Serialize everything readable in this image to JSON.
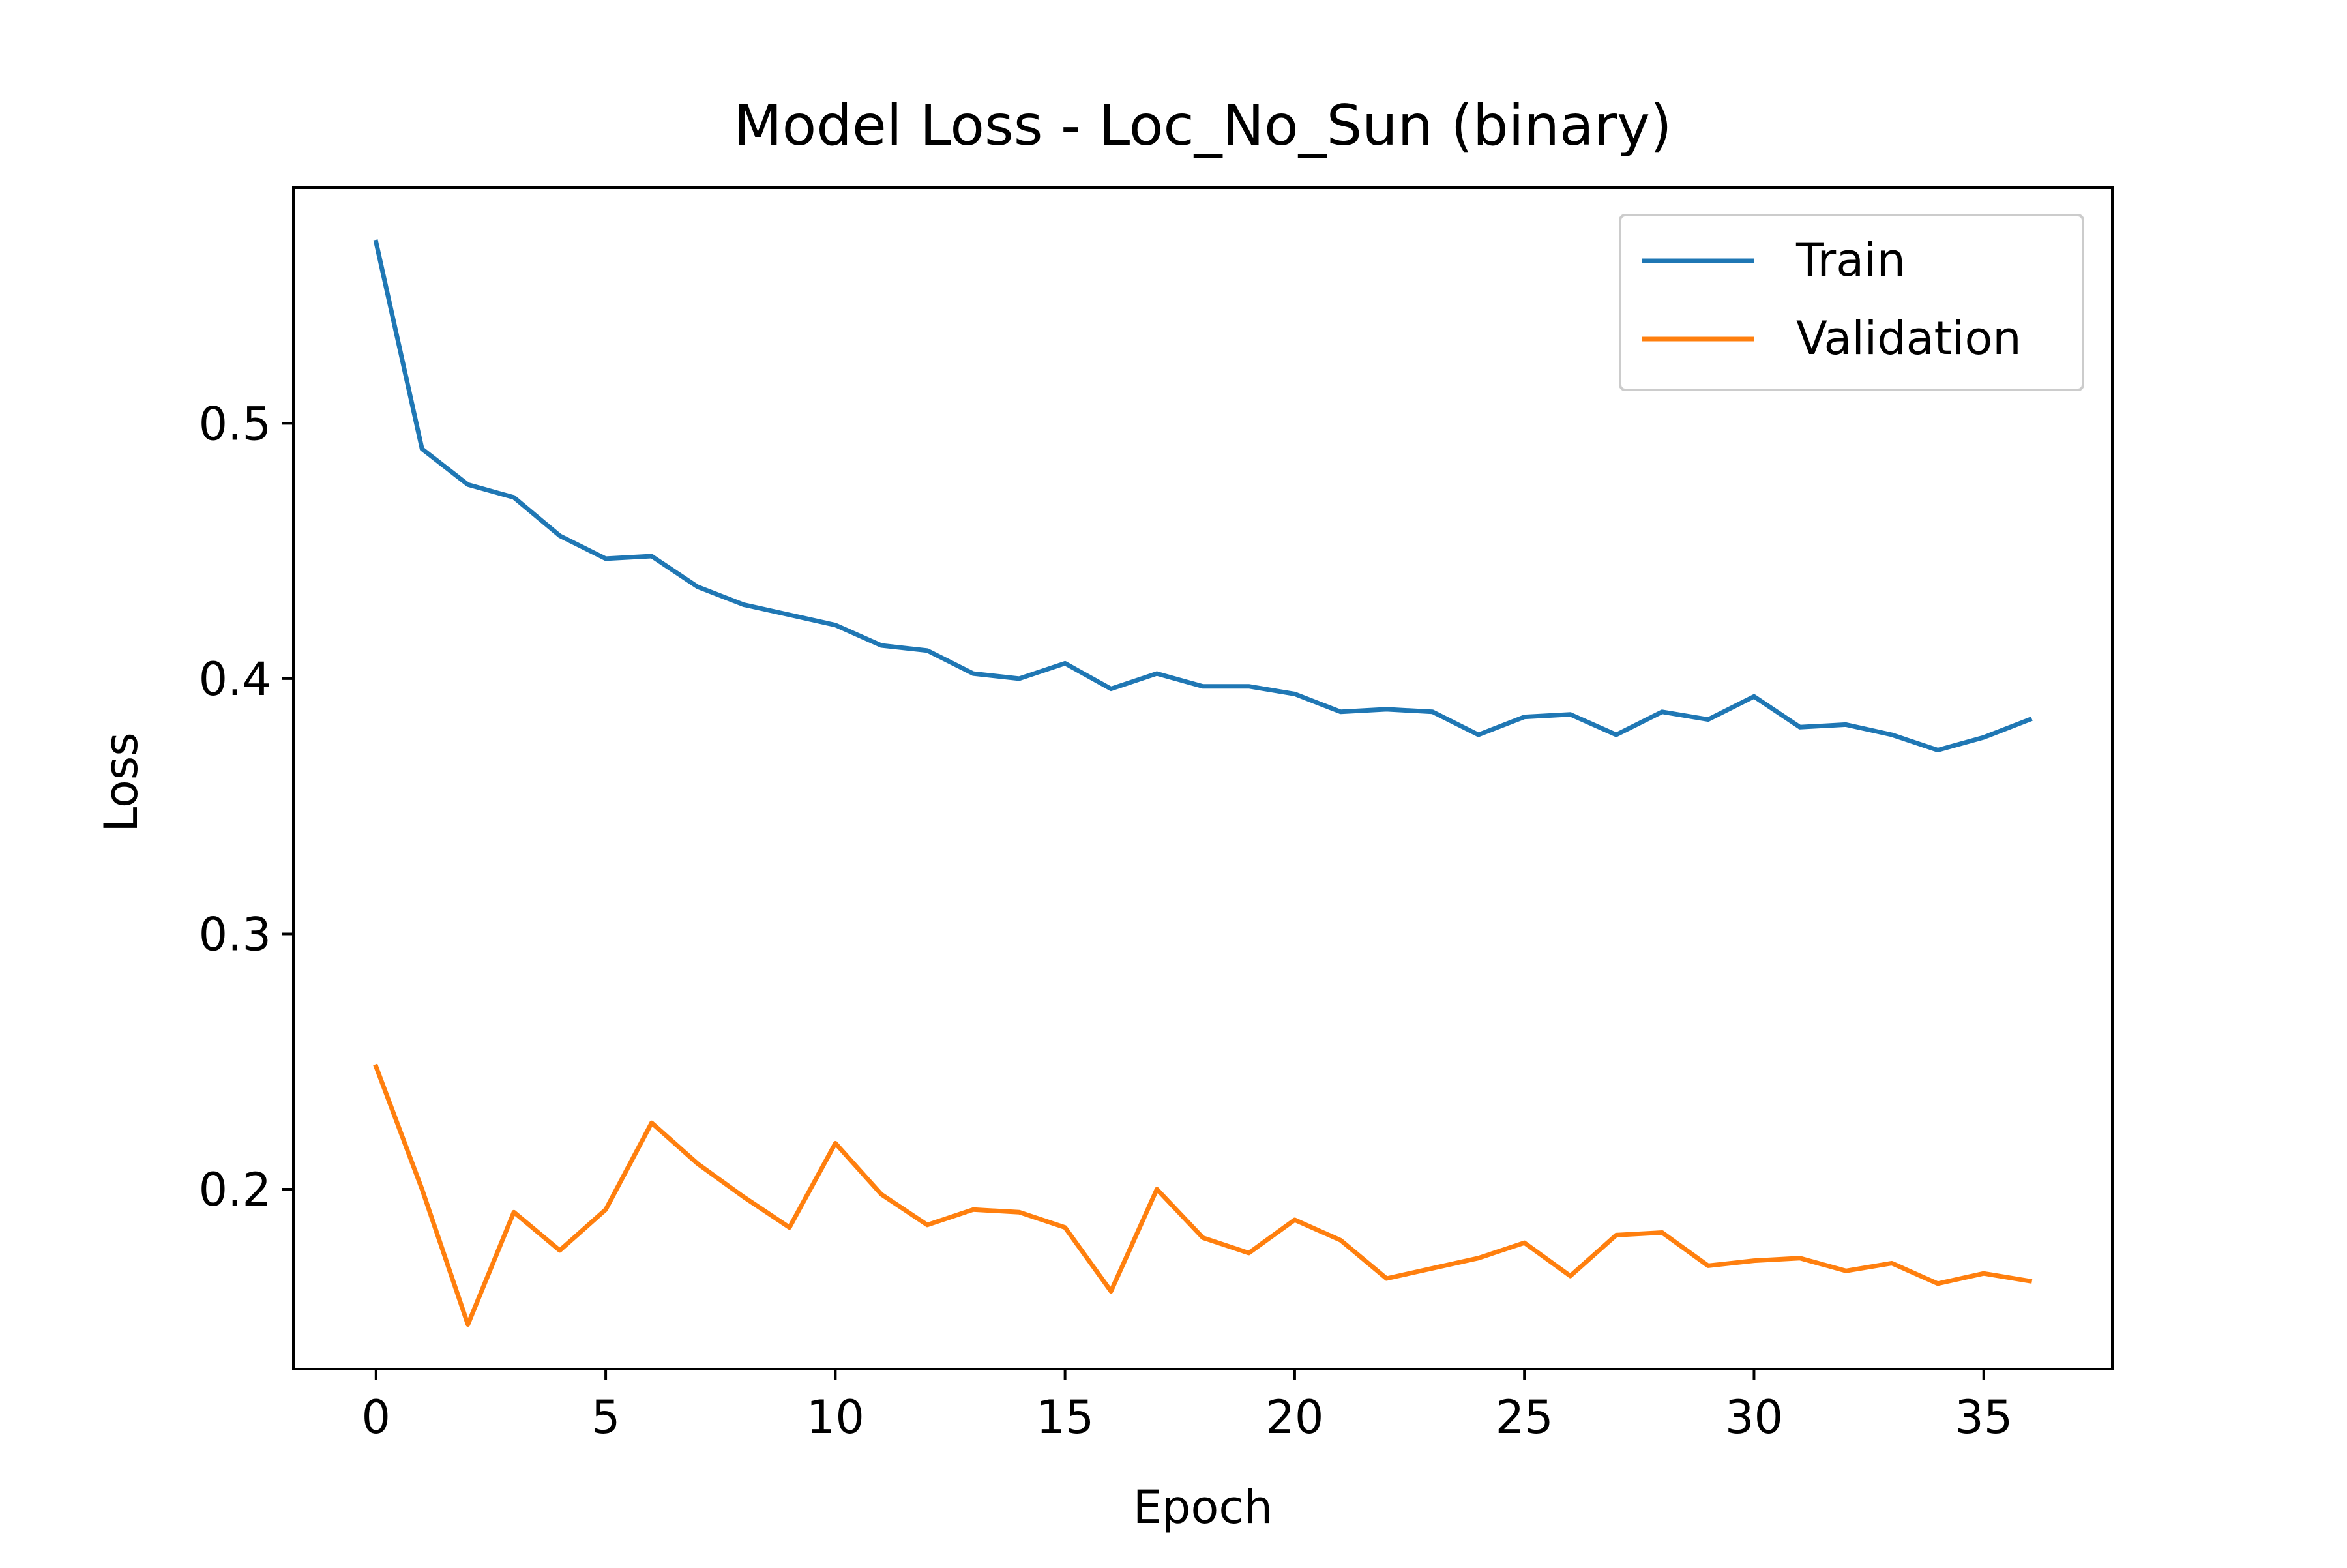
{
  "chart_data": {
    "type": "line",
    "title": "Model Loss - Loc_No_Sun (binary)",
    "xlabel": "Epoch",
    "ylabel": "Loss",
    "xlim": [
      -1.8,
      37.8
    ],
    "ylim": [
      0.1295,
      0.5923
    ],
    "xticks": [
      0,
      5,
      10,
      15,
      20,
      25,
      30,
      35
    ],
    "yticks": [
      0.2,
      0.3,
      0.4,
      0.5
    ],
    "xtick_labels": [
      "0",
      "5",
      "10",
      "15",
      "20",
      "25",
      "30",
      "35"
    ],
    "ytick_labels": [
      "0.2",
      "0.3",
      "0.4",
      "0.5"
    ],
    "grid": false,
    "legend_position": "upper right",
    "x": [
      0,
      1,
      2,
      3,
      4,
      5,
      6,
      7,
      8,
      9,
      10,
      11,
      12,
      13,
      14,
      15,
      16,
      17,
      18,
      19,
      20,
      21,
      22,
      23,
      24,
      25,
      26,
      27,
      28,
      29,
      30,
      31,
      32,
      33,
      34,
      35,
      36
    ],
    "series": [
      {
        "name": "Train",
        "color": "#1f77b4",
        "values": [
          0.571,
          0.49,
          0.476,
          0.471,
          0.456,
          0.447,
          0.448,
          0.436,
          0.429,
          0.425,
          0.421,
          0.413,
          0.411,
          0.402,
          0.4,
          0.406,
          0.396,
          0.402,
          0.397,
          0.397,
          0.394,
          0.387,
          0.388,
          0.387,
          0.378,
          0.385,
          0.386,
          0.378,
          0.387,
          0.384,
          0.393,
          0.381,
          0.382,
          0.378,
          0.372,
          0.377,
          0.384
        ]
      },
      {
        "name": "Validation",
        "color": "#ff7f0e",
        "values": [
          0.248,
          0.2,
          0.147,
          0.191,
          0.176,
          0.192,
          0.226,
          0.21,
          0.197,
          0.185,
          0.218,
          0.198,
          0.186,
          0.192,
          0.191,
          0.185,
          0.16,
          0.2,
          0.181,
          0.175,
          0.188,
          0.18,
          0.165,
          0.169,
          0.173,
          0.179,
          0.166,
          0.182,
          0.183,
          0.17,
          0.172,
          0.173,
          0.168,
          0.171,
          0.163,
          0.167,
          0.164
        ]
      }
    ]
  }
}
